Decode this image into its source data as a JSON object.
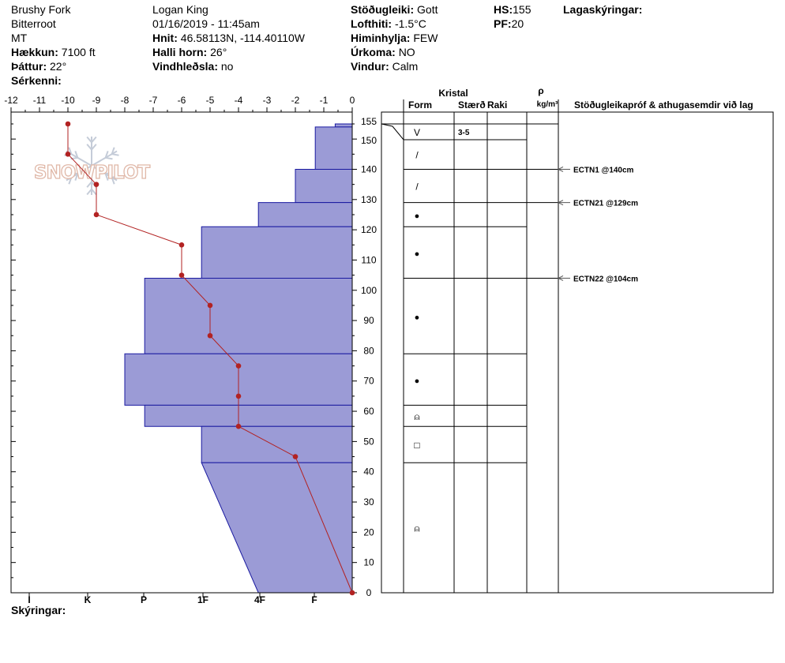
{
  "header": {
    "location": "Brushy Fork",
    "range": "Bitterroot",
    "state": "MT",
    "elevation_label": "Hækkun:",
    "elevation": "7100 ft",
    "aspect_label": "Þáttur:",
    "aspect": "22°",
    "features_label": "Sérkenni:",
    "features": "",
    "observer": "Logan King",
    "datetime": "01/16/2019 - 11:45am",
    "coords_label": "Hnit:",
    "coords": "46.58113N, -114.40110W",
    "slope_label": "Halli horn:",
    "slope": "26°",
    "wind_loading_label": "Vindhleðsla:",
    "wind_loading": "no",
    "stability_label": "Stöðugleiki:",
    "stability": "Gott",
    "air_temp_label": "Lofthiti:",
    "air_temp": "-1.5°C",
    "sky_label": "Himinhylja:",
    "sky": "FEW",
    "precip_label": "Úrkoma:",
    "precip": "NO",
    "wind_label": "Vindur:",
    "wind": "Calm",
    "hs_label": "HS:",
    "hs": "155",
    "pf_label": "PF:",
    "pf": "20",
    "layer_notes_label": "Lagaskýringar:",
    "legend_label": "Skýringar:"
  },
  "columns": {
    "crystal": "Kristal",
    "form": "Form",
    "size": "Stærð",
    "moisture": "Raki",
    "rho": "ρ",
    "density_unit": "kg/m³",
    "tests": "Stöðugleikapróf & athugasemdir við lag"
  },
  "watermark": "SNOWPILOT",
  "chart_data": {
    "type": "snow_profile",
    "temperature_axis": {
      "ticks": [
        -12,
        -11,
        -10,
        -9,
        -8,
        -7,
        -6,
        -5,
        -4,
        -3,
        -2,
        -1,
        0
      ],
      "range": [
        -12,
        0
      ]
    },
    "depth_axis": {
      "ticks": [
        0,
        10,
        20,
        30,
        40,
        50,
        60,
        70,
        80,
        90,
        100,
        110,
        120,
        130,
        140,
        150,
        155
      ],
      "range": [
        0,
        155
      ]
    },
    "hardness_axis": {
      "ticks": [
        "I",
        "K",
        "P",
        "1F",
        "4F",
        "F"
      ]
    },
    "temperature_profile": [
      {
        "depth": 155,
        "temp": -10
      },
      {
        "depth": 145,
        "temp": -10
      },
      {
        "depth": 135,
        "temp": -9
      },
      {
        "depth": 125,
        "temp": -9
      },
      {
        "depth": 115,
        "temp": -6
      },
      {
        "depth": 105,
        "temp": -6
      },
      {
        "depth": 95,
        "temp": -5
      },
      {
        "depth": 85,
        "temp": -5
      },
      {
        "depth": 75,
        "temp": -4
      },
      {
        "depth": 65,
        "temp": -4
      },
      {
        "depth": 55,
        "temp": -4
      },
      {
        "depth": 45,
        "temp": -2
      },
      {
        "depth": 0,
        "temp": 0
      }
    ],
    "hardness_layers": [
      {
        "top": 155,
        "bottom": 154,
        "hardness_top": 0.6,
        "hardness_bottom": 0.6
      },
      {
        "top": 154,
        "bottom": 140,
        "hardness_top": 1.3,
        "hardness_bottom": 1.3
      },
      {
        "top": 140,
        "bottom": 129,
        "hardness_top": 2.0,
        "hardness_bottom": 2.0
      },
      {
        "top": 129,
        "bottom": 121,
        "hardness_top": 3.3,
        "hardness_bottom": 3.3
      },
      {
        "top": 121,
        "bottom": 104,
        "hardness_top": 5.3,
        "hardness_bottom": 5.3
      },
      {
        "top": 104,
        "bottom": 79,
        "hardness_top": 7.3,
        "hardness_bottom": 7.3
      },
      {
        "top": 79,
        "bottom": 62,
        "hardness_top": 8.0,
        "hardness_bottom": 8.0
      },
      {
        "top": 62,
        "bottom": 55,
        "hardness_top": 7.3,
        "hardness_bottom": 7.3
      },
      {
        "top": 55,
        "bottom": 43,
        "hardness_top": 5.3,
        "hardness_bottom": 5.3
      },
      {
        "top": 43,
        "bottom": 0,
        "hardness_top": 5.3,
        "hardness_bottom": 3.3
      }
    ],
    "grain_layers": [
      {
        "top": 155,
        "bottom": 150,
        "form": "V",
        "size": "3-5"
      },
      {
        "top": 150,
        "bottom": 140,
        "form": "/"
      },
      {
        "top": 140,
        "bottom": 129,
        "form": "/"
      },
      {
        "top": 129,
        "bottom": 121,
        "form": "●"
      },
      {
        "top": 121,
        "bottom": 104,
        "form": "●"
      },
      {
        "top": 104,
        "bottom": 79,
        "form": "●"
      },
      {
        "top": 79,
        "bottom": 62,
        "form": "●"
      },
      {
        "top": 62,
        "bottom": 55,
        "form": "⍝"
      },
      {
        "top": 55,
        "bottom": 43,
        "form": "□"
      },
      {
        "top": 43,
        "bottom": 0,
        "form": "⍝"
      }
    ],
    "stability_tests": [
      {
        "depth": 140,
        "label": "ECTN1 @140cm"
      },
      {
        "depth": 129,
        "label": "ECTN21 @129cm"
      },
      {
        "depth": 104,
        "label": "ECTN22 @104cm"
      }
    ],
    "colors": {
      "hardness_fill": "#9b9bd6",
      "hardness_edge": "#1a1aa0",
      "temperature": "#b22222"
    }
  }
}
